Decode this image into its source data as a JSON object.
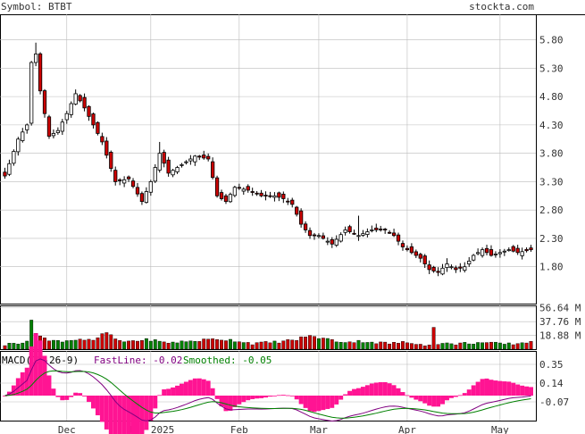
{
  "header": {
    "symbol_label": "Symbol: BTBT",
    "site": "stockta.com"
  },
  "colors": {
    "up": "#008000",
    "down": "#cc0000",
    "grid": "#bbbbbb",
    "fastline": "#800080",
    "smoothed": "#008000",
    "histogram": "#ff1493"
  },
  "chart_data": [
    {
      "type": "candlestick",
      "title": "",
      "y_axis_side": "right",
      "y_ticks": [
        "5.80",
        "5.30",
        "4.80",
        "4.30",
        "3.80",
        "3.30",
        "2.80",
        "2.30",
        "1.80"
      ],
      "ylim": [
        1.15,
        6.25
      ],
      "x_ticks": [
        "Dec",
        "Jan 2025",
        "Feb",
        "Mar",
        "Apr",
        "May"
      ],
      "x_tick_index": [
        14,
        33,
        53,
        71,
        91,
        112
      ],
      "num_bars": 120,
      "close_anchors": [
        [
          0,
          3.4
        ],
        [
          3,
          4.05
        ],
        [
          5,
          4.3
        ],
        [
          6,
          5.4
        ],
        [
          7,
          5.55
        ],
        [
          8,
          4.9
        ],
        [
          10,
          4.1
        ],
        [
          12,
          4.2
        ],
        [
          14,
          4.5
        ],
        [
          16,
          4.85
        ],
        [
          18,
          4.6
        ],
        [
          20,
          4.3
        ],
        [
          22,
          4.0
        ],
        [
          25,
          3.3
        ],
        [
          28,
          3.35
        ],
        [
          31,
          2.95
        ],
        [
          33,
          3.3
        ],
        [
          35,
          3.8
        ],
        [
          37,
          3.45
        ],
        [
          40,
          3.6
        ],
        [
          43,
          3.75
        ],
        [
          46,
          3.7
        ],
        [
          48,
          3.05
        ],
        [
          50,
          2.95
        ],
        [
          52,
          3.2
        ],
        [
          55,
          3.15
        ],
        [
          58,
          3.05
        ],
        [
          61,
          3.05
        ],
        [
          63,
          3.0
        ],
        [
          65,
          2.9
        ],
        [
          67,
          2.55
        ],
        [
          69,
          2.35
        ],
        [
          71,
          2.35
        ],
        [
          74,
          2.2
        ],
        [
          77,
          2.45
        ],
        [
          80,
          2.35
        ],
        [
          83,
          2.45
        ],
        [
          86,
          2.45
        ],
        [
          88,
          2.35
        ],
        [
          90,
          2.15
        ],
        [
          92,
          2.05
        ],
        [
          94,
          1.95
        ],
        [
          96,
          1.75
        ],
        [
          98,
          1.7
        ],
        [
          100,
          1.85
        ],
        [
          102,
          1.75
        ],
        [
          104,
          1.8
        ],
        [
          106,
          2.0
        ],
        [
          108,
          2.1
        ],
        [
          110,
          2.0
        ],
        [
          112,
          2.05
        ],
        [
          114,
          2.1
        ],
        [
          116,
          2.05
        ],
        [
          119,
          2.1
        ]
      ],
      "marker_wicks": [
        [
          7,
          5.75
        ],
        [
          35,
          4.0
        ],
        [
          80,
          2.7
        ],
        [
          100,
          1.95
        ]
      ]
    },
    {
      "type": "bar",
      "title": "",
      "y_ticks": [
        "56.64 M",
        "37.76 M",
        "18.88 M"
      ],
      "ylim": [
        0,
        60
      ],
      "volume_anchors": [
        [
          0,
          6
        ],
        [
          4,
          10
        ],
        [
          5,
          12
        ],
        [
          6,
          38
        ],
        [
          7,
          22
        ],
        [
          8,
          20
        ],
        [
          10,
          11
        ],
        [
          14,
          12
        ],
        [
          17,
          14
        ],
        [
          20,
          11
        ],
        [
          21,
          16
        ],
        [
          23,
          23
        ],
        [
          26,
          10
        ],
        [
          30,
          12
        ],
        [
          33,
          13
        ],
        [
          36,
          9
        ],
        [
          40,
          10
        ],
        [
          44,
          12
        ],
        [
          48,
          14
        ],
        [
          52,
          12
        ],
        [
          56,
          8
        ],
        [
          60,
          9
        ],
        [
          63,
          11
        ],
        [
          66,
          13
        ],
        [
          68,
          18
        ],
        [
          70,
          17
        ],
        [
          72,
          15
        ],
        [
          75,
          11
        ],
        [
          78,
          10
        ],
        [
          81,
          11
        ],
        [
          84,
          9
        ],
        [
          87,
          8
        ],
        [
          90,
          9
        ],
        [
          94,
          8
        ],
        [
          96,
          5
        ],
        [
          97,
          30
        ],
        [
          98,
          8
        ],
        [
          101,
          7
        ],
        [
          104,
          8
        ],
        [
          107,
          9
        ],
        [
          110,
          8
        ],
        [
          114,
          7
        ],
        [
          118,
          9
        ],
        [
          119,
          12
        ]
      ]
    },
    {
      "type": "line",
      "title": "MACD(12-26-9)",
      "series": [
        {
          "name": "FastLine: -0.02",
          "values_ref": "computed_from_close"
        },
        {
          "name": "Smoothed: -0.05",
          "values_ref": "computed_from_close"
        }
      ],
      "y_ticks": [
        "0.35",
        "0.14",
        "-0.07"
      ],
      "ylim": [
        -0.28,
        0.5
      ]
    }
  ]
}
